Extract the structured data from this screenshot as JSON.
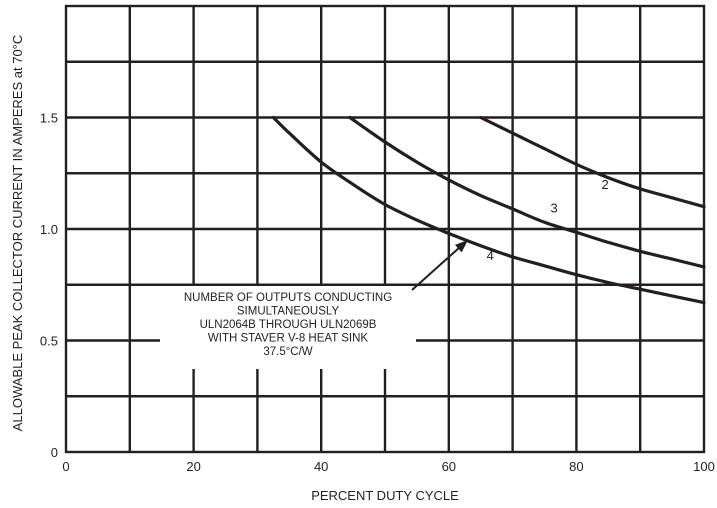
{
  "chart_data": {
    "type": "line",
    "xlabel": "PERCENT DUTY CYCLE",
    "ylabel": "ALLOWABLE PEAK COLLECTOR CURRENT IN AMPERES at 70°C",
    "xlim": [
      0,
      100
    ],
    "ylim": [
      0,
      2.0
    ],
    "x_tick_labels": [
      "0",
      "20",
      "40",
      "60",
      "80",
      "100"
    ],
    "y_tick_labels": [
      "0",
      "0.5",
      "1.0",
      "1.5"
    ],
    "grid": true,
    "series": [
      {
        "name": "2",
        "x": [
          65,
          70,
          75,
          80,
          85,
          90,
          95,
          100
        ],
        "y": [
          1.5,
          1.43,
          1.36,
          1.29,
          1.23,
          1.18,
          1.14,
          1.1
        ]
      },
      {
        "name": "3",
        "x": [
          44.5,
          50,
          55,
          60,
          65,
          70,
          75,
          80,
          85,
          90,
          95,
          100
        ],
        "y": [
          1.5,
          1.39,
          1.3,
          1.22,
          1.15,
          1.09,
          1.03,
          0.985,
          0.94,
          0.9,
          0.865,
          0.83
        ]
      },
      {
        "name": "4",
        "x": [
          32.5,
          35,
          40,
          45,
          50,
          55,
          60,
          65,
          70,
          75,
          80,
          85,
          90,
          95,
          100
        ],
        "y": [
          1.5,
          1.43,
          1.3,
          1.2,
          1.11,
          1.04,
          0.98,
          0.925,
          0.875,
          0.835,
          0.795,
          0.76,
          0.73,
          0.7,
          0.67
        ]
      }
    ],
    "annotation": {
      "lines": [
        "NUMBER OF OUTPUTS CONDUCTING",
        "SIMULTANEOUSLY",
        "ULN2064B THROUGH ULN2069B",
        "WITH STAVER V-8 HEAT SINK",
        "37.5°C/W"
      ]
    }
  }
}
